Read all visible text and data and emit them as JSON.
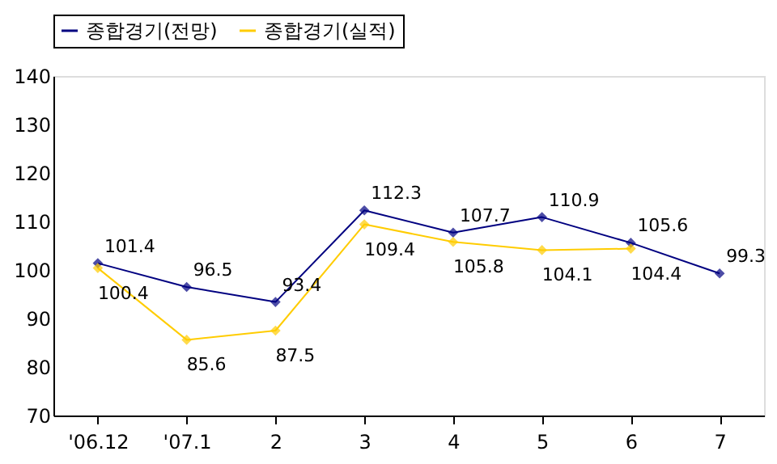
{
  "chart_data": {
    "type": "line",
    "categories": [
      "'06.12",
      "'07.1",
      "2",
      "3",
      "4",
      "5",
      "6",
      "7"
    ],
    "series": [
      {
        "name": "종합경기(전망)",
        "color": "#000080",
        "values": [
          101.4,
          96.5,
          93.4,
          112.3,
          107.7,
          110.9,
          105.6,
          99.3
        ]
      },
      {
        "name": "종합경기(실적)",
        "color": "#ffcc00",
        "values": [
          100.4,
          85.6,
          87.5,
          109.4,
          105.8,
          104.1,
          104.4,
          null
        ]
      }
    ],
    "ylim": [
      70,
      140
    ],
    "yticks": [
      70,
      80,
      90,
      100,
      110,
      120,
      130,
      140
    ],
    "data_labels": true,
    "grid": false,
    "legend": "top",
    "marker": "diamond",
    "line_style": "solid"
  }
}
